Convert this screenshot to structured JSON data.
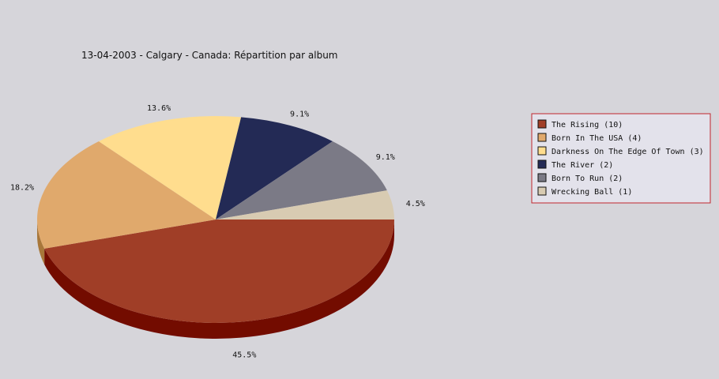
{
  "chart_data": {
    "type": "pie",
    "title": "13-04-2003 - Calgary - Canada:  Répartition par album",
    "slices": [
      {
        "label": "The Rising (10)",
        "value": 10,
        "percent_label": "45.5%",
        "color": "#a03e27",
        "side_color": "#730c00"
      },
      {
        "label": "Born In The USA (4)",
        "value": 4,
        "percent_label": "18.2%",
        "color": "#e0a96c",
        "side_color": "#a8773a"
      },
      {
        "label": "Darkness On The Edge Of Town (3)",
        "value": 3,
        "percent_label": "13.6%",
        "color": "#ffdd8e",
        "side_color": "#c9a85a"
      },
      {
        "label": "The River (2)",
        "value": 2,
        "percent_label": "9.1%",
        "color": "#232a55",
        "side_color": "#10143a"
      },
      {
        "label": "Born To Run (2)",
        "value": 2,
        "percent_label": "9.1%",
        "color": "#7b7a86",
        "side_color": "#55545e"
      },
      {
        "label": "Wrecking Ball (1)",
        "value": 1,
        "percent_label": "4.5%",
        "color": "#d8cbb2",
        "side_color": "#a89b82"
      }
    ],
    "legend_position": "right",
    "legend_border_color": "#c0272d",
    "background": "#d6d5da"
  }
}
